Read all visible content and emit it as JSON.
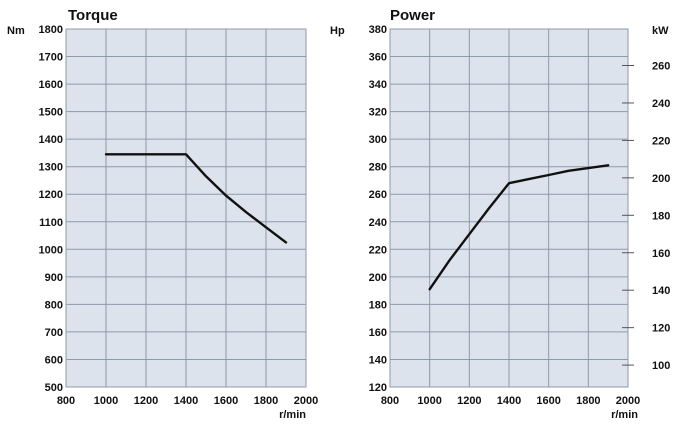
{
  "chart_data": [
    {
      "type": "line",
      "title": "Torque",
      "ylabel": "Nm",
      "xlabel": "r/min",
      "xlim": [
        800,
        2000
      ],
      "ylim": [
        500,
        1800
      ],
      "x_ticks": [
        800,
        1000,
        1200,
        1400,
        1600,
        1800,
        2000
      ],
      "y_ticks": [
        500,
        600,
        700,
        800,
        900,
        1000,
        1100,
        1200,
        1300,
        1400,
        1500,
        1600,
        1700,
        1800
      ],
      "grid": true,
      "series": [
        {
          "x": [
            1000,
            1100,
            1200,
            1300,
            1400,
            1500,
            1600,
            1700,
            1800,
            1900
          ],
          "y": [
            1345,
            1345,
            1345,
            1345,
            1345,
            1265,
            1195,
            1135,
            1080,
            1025
          ]
        }
      ]
    },
    {
      "type": "line",
      "title": "Power",
      "ylabel": "Hp",
      "ylabel_right": "kW",
      "xlabel": "r/min",
      "xlim": [
        800,
        2000
      ],
      "ylim": [
        120,
        380
      ],
      "y2lim": [
        88.3,
        279.5
      ],
      "x_ticks": [
        800,
        1000,
        1200,
        1400,
        1600,
        1800,
        2000
      ],
      "y_ticks": [
        120,
        140,
        160,
        180,
        200,
        220,
        240,
        260,
        280,
        300,
        320,
        340,
        360,
        380
      ],
      "y2_ticks": [
        100,
        120,
        140,
        160,
        180,
        200,
        220,
        240,
        260
      ],
      "grid": true,
      "series": [
        {
          "x": [
            1000,
            1100,
            1200,
            1300,
            1400,
            1500,
            1600,
            1700,
            1800,
            1900
          ],
          "y": [
            191,
            212,
            231,
            250,
            268,
            271,
            274,
            277,
            279,
            281
          ]
        }
      ]
    }
  ],
  "colors": {
    "plot_bg": "#dde3ec",
    "grid": "#8f9aab",
    "line": "#111111"
  }
}
